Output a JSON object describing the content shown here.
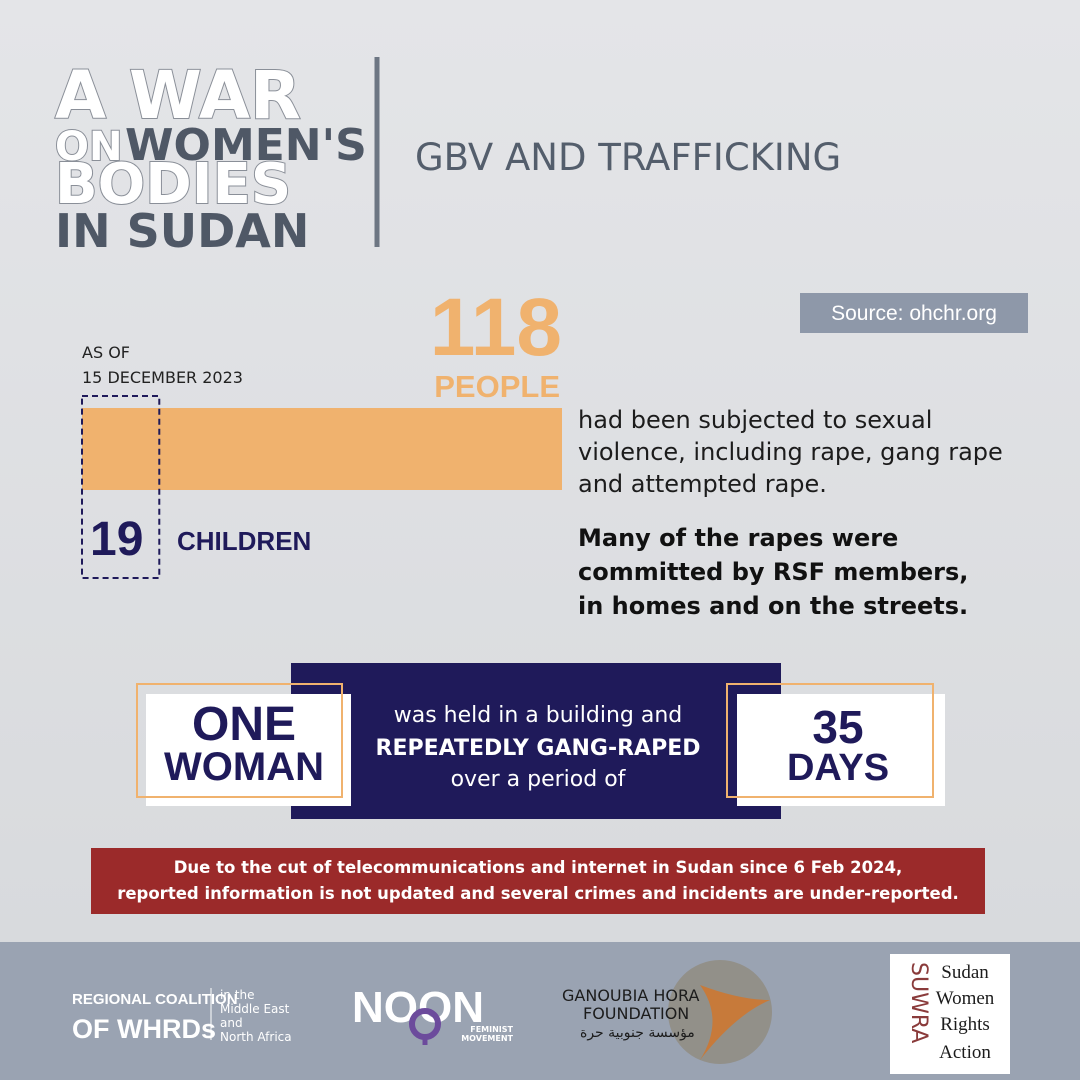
{
  "header": {
    "title_line1": "A WAR",
    "title_line2_a": "ON",
    "title_line2_b": "WOMEN'S",
    "title_line3": "BODIES",
    "title_line4": "IN SUDAN",
    "subtitle": "GBV AND TRAFFICKING"
  },
  "source": "Source: ohchr.org",
  "stats": {
    "date_lines": [
      "AS OF",
      "15 DECEMBER 2023"
    ],
    "people": 118,
    "people_label": "PEOPLE",
    "children": 19,
    "children_label": "CHILDREN",
    "description_lines": [
      "had been subjected to sexual",
      "violence, including rape, gang rape",
      "and attempted rape."
    ],
    "emphasis_lines": [
      "Many of the rapes were",
      "committed by RSF members,",
      "in homes and on the streets."
    ]
  },
  "case": {
    "left_lines": [
      "ONE",
      "WOMAN"
    ],
    "middle_lines": [
      "was held in a building and",
      "REPEATEDLY GANG-RAPED",
      "over a period of"
    ],
    "days": 35,
    "days_label": "DAYS"
  },
  "notice_lines": [
    "Due to the cut of telecommunications and internet in Sudan since 6 Feb 2024,",
    "reported information is not updated and several crimes and incidents are under-reported."
  ],
  "footer": {
    "coalition_lines": [
      "REGIONAL COALITION",
      "OF WHRDs"
    ],
    "coalition_region_lines": [
      "in the",
      "Middle East",
      "and",
      "North Africa"
    ],
    "noon": "NOON",
    "noon_sub_lines": [
      "FEMINIST",
      "MOVEMENT"
    ],
    "ganoubia_lines": [
      "GANOUBIA HORA",
      "FOUNDATION"
    ],
    "ganoubia_arabic": "مؤسسة جنوبية حرة",
    "suwra": "SUWRA",
    "suwra_lines": [
      "Sudan",
      "Women",
      "Rights",
      "Action"
    ]
  }
}
